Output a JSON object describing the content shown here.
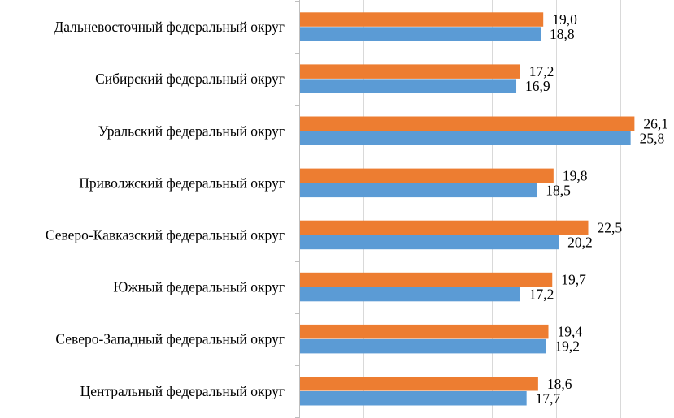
{
  "chart_data": {
    "type": "bar",
    "orientation": "horizontal",
    "categories": [
      "Дальневосточный федеральный округ",
      "Сибирский федеральный округ",
      "Уральский федеральный округ",
      "Приволжский федеральный округ",
      "Северо-Кавказский федеральный округ",
      "Южный федеральный округ",
      "Северо-Западный федеральный округ",
      "Центральный федеральный округ"
    ],
    "series": [
      {
        "color": "#ed7d31",
        "values": [
          19.0,
          17.2,
          26.1,
          19.8,
          22.5,
          19.7,
          19.4,
          18.6
        ],
        "labels": [
          "19,0",
          "17,2",
          "26,1",
          "19,8",
          "22,5",
          "19,7",
          "19,4",
          "18,6"
        ]
      },
      {
        "color": "#5b9bd5",
        "values": [
          18.8,
          16.9,
          25.8,
          18.5,
          20.2,
          17.2,
          19.2,
          17.7
        ],
        "labels": [
          "18,8",
          "16,9",
          "25,8",
          "18,5",
          "20,2",
          "17,2",
          "19,2",
          "17,7"
        ]
      }
    ],
    "xlim": [
      0,
      30
    ],
    "grid": true,
    "gridline_color": "#d9d9d9",
    "title": "",
    "xlabel": "",
    "ylabel": ""
  }
}
